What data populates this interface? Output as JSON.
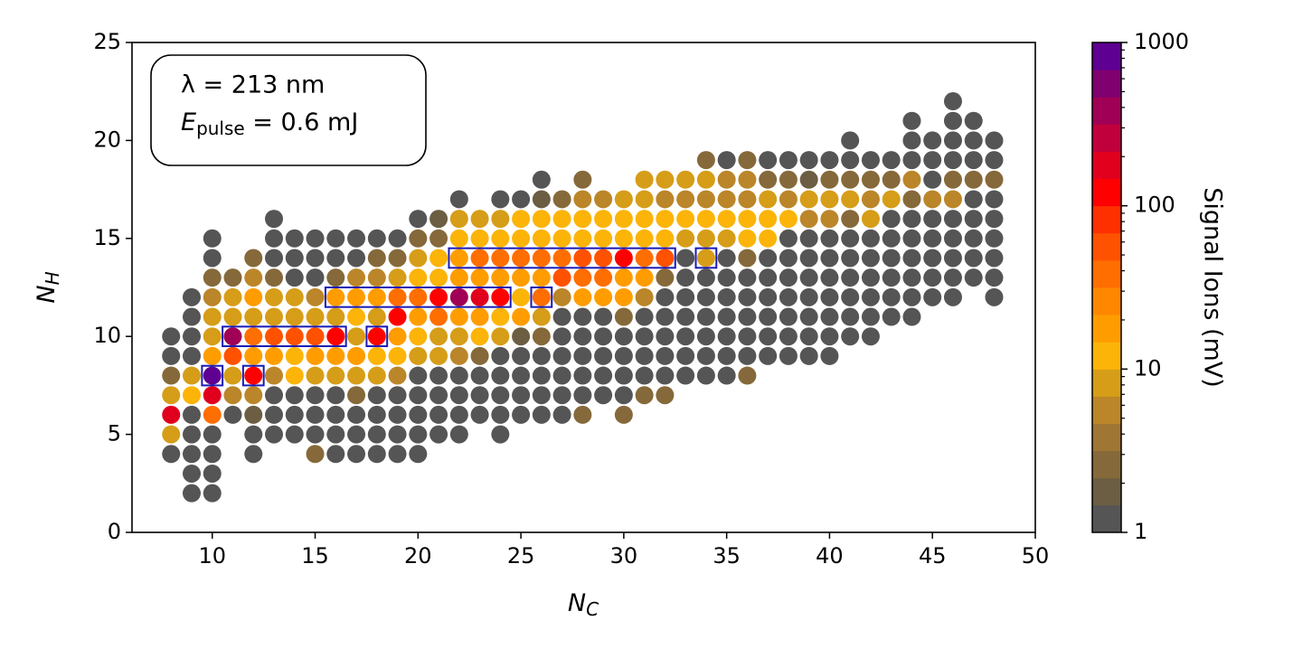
{
  "chart_data": {
    "type": "scatter",
    "xlabel": {
      "main": "N",
      "sub": "C"
    },
    "ylabel": {
      "main": "N",
      "sub": "H"
    },
    "annotation": {
      "line1": "λ = 213 nm",
      "line2": {
        "main": "E",
        "sub": "pulse",
        "rest": " = 0.6 mJ"
      }
    },
    "xlim": [
      6.1,
      50
    ],
    "xticks": [
      10,
      15,
      20,
      25,
      30,
      35,
      40,
      45,
      50
    ],
    "ylim": [
      0,
      25
    ],
    "yticks": [
      0,
      5,
      10,
      15,
      20,
      25
    ],
    "colorbar": {
      "label": "Signal Ions (mV)",
      "log": true,
      "clim": [
        1,
        1000
      ],
      "ticks": [
        1,
        10,
        100,
        1000
      ],
      "minor_ticks": [
        2,
        3,
        4,
        5,
        6,
        7,
        8,
        9,
        20,
        30,
        40,
        50,
        60,
        70,
        80,
        90,
        200,
        300,
        400,
        500,
        600,
        700,
        800,
        900
      ],
      "colors": [
        "#555555",
        "#6b5e42",
        "#86693a",
        "#a07634",
        "#bb8629",
        "#d69d18",
        "#fcb408",
        "#ff9d00",
        "#ff8700",
        "#ff6e00",
        "#ff5200",
        "#ff3000",
        "#ff0000",
        "#e0001e",
        "#c0003c",
        "#a00055",
        "#800070",
        "#5e0092"
      ]
    },
    "highlight_color": "#1a1ab4",
    "highlights": [
      {
        "x": [
          10,
          10
        ],
        "y": 8
      },
      {
        "x": [
          12,
          12
        ],
        "y": 8
      },
      {
        "x": [
          11,
          16
        ],
        "y": 10
      },
      {
        "x": [
          18,
          18
        ],
        "y": 10
      },
      {
        "x": [
          16,
          24
        ],
        "y": 12
      },
      {
        "x": [
          26,
          26
        ],
        "y": 12
      },
      {
        "x": [
          22,
          32
        ],
        "y": 14
      },
      {
        "x": [
          34,
          34
        ],
        "y": 14
      }
    ],
    "columns": [
      {
        "x": 8,
        "y": [
          4,
          5,
          6,
          7,
          8,
          9,
          10
        ],
        "values": [
          1.2,
          8,
          180,
          8,
          2.6,
          1.2,
          1.2
        ]
      },
      {
        "x": 9,
        "y": [
          2,
          3,
          4,
          5,
          6,
          7,
          8,
          9,
          10,
          11,
          12
        ],
        "values": [
          1.2,
          1.2,
          1.2,
          1.2,
          1.2,
          12,
          8,
          1.2,
          1.2,
          1.2,
          1.2
        ]
      },
      {
        "x": 10,
        "y": [
          2,
          3,
          4,
          5,
          6,
          7,
          8,
          9,
          10,
          11,
          12,
          13,
          14,
          15
        ],
        "values": [
          1.2,
          1.2,
          1.2,
          1.2,
          35,
          180,
          800,
          20,
          8,
          8,
          5,
          2.6,
          1.2,
          1.2
        ]
      },
      {
        "x": 11,
        "y": [
          6,
          7,
          8,
          9,
          10,
          11,
          12,
          13
        ],
        "values": [
          1.2,
          5,
          8,
          55,
          400,
          8,
          8,
          2.6
        ]
      },
      {
        "x": 12,
        "y": [
          4,
          5,
          6,
          7,
          8,
          9,
          10,
          11,
          12,
          13,
          14
        ],
        "values": [
          1.2,
          1.2,
          1.8,
          5,
          100,
          20,
          35,
          8,
          20,
          5,
          2.6
        ]
      },
      {
        "x": 13,
        "y": [
          5,
          6,
          7,
          8,
          9,
          10,
          11,
          12,
          13,
          14,
          15,
          16
        ],
        "values": [
          1.2,
          1.2,
          1.2,
          5,
          20,
          55,
          8,
          8,
          2.6,
          1.2,
          1.2,
          1.2
        ]
      },
      {
        "x": 14,
        "y": [
          5,
          6,
          7,
          8,
          9,
          10,
          11,
          12,
          13,
          14,
          15
        ],
        "values": [
          1.2,
          1.2,
          1.2,
          12,
          12,
          55,
          8,
          8,
          1.2,
          1.2,
          1.2
        ]
      },
      {
        "x": 15,
        "y": [
          4,
          5,
          6,
          7,
          8,
          9,
          10,
          11,
          12,
          13,
          14,
          15
        ],
        "values": [
          2.6,
          1.2,
          1.2,
          1.2,
          8,
          20,
          55,
          8,
          5,
          1.2,
          1.2,
          1.2
        ]
      },
      {
        "x": 16,
        "y": [
          4,
          5,
          6,
          7,
          8,
          9,
          10,
          11,
          12,
          13,
          14,
          15
        ],
        "values": [
          1.2,
          1.2,
          1.2,
          1.2,
          8,
          20,
          100,
          8,
          20,
          2.6,
          1.2,
          1.2
        ]
      },
      {
        "x": 17,
        "y": [
          4,
          5,
          6,
          7,
          8,
          9,
          10,
          11,
          12,
          13,
          14,
          15
        ],
        "values": [
          1.2,
          1.2,
          1.2,
          2.6,
          8,
          20,
          8,
          12,
          20,
          5,
          1.2,
          1.2
        ]
      },
      {
        "x": 18,
        "y": [
          4,
          5,
          6,
          7,
          8,
          9,
          10,
          11,
          12,
          13,
          14,
          15
        ],
        "values": [
          1.2,
          1.2,
          1.2,
          1.2,
          8,
          12,
          100,
          8,
          20,
          5,
          2.6,
          1.2
        ]
      },
      {
        "x": 19,
        "y": [
          4,
          5,
          6,
          7,
          8,
          9,
          10,
          11,
          12,
          13,
          14,
          15
        ],
        "values": [
          1.2,
          1.2,
          1.2,
          1.2,
          5,
          12,
          20,
          100,
          35,
          8,
          2.6,
          1.2
        ]
      },
      {
        "x": 20,
        "y": [
          4,
          5,
          6,
          7,
          8,
          9,
          10,
          11,
          12,
          13,
          14,
          15,
          16
        ],
        "values": [
          1.2,
          1.2,
          1.2,
          1.2,
          1.2,
          8,
          12,
          20,
          35,
          12,
          8,
          2.6,
          1.2
        ]
      },
      {
        "x": 21,
        "y": [
          5,
          6,
          7,
          8,
          9,
          10,
          11,
          12,
          13,
          14,
          15,
          16
        ],
        "values": [
          1.2,
          1.2,
          1.2,
          1.2,
          8,
          8,
          35,
          100,
          12,
          12,
          2.6,
          1.8
        ]
      },
      {
        "x": 22,
        "y": [
          5,
          6,
          7,
          8,
          9,
          10,
          11,
          12,
          13,
          14,
          15,
          16,
          17
        ],
        "values": [
          1.2,
          1.2,
          1.2,
          1.2,
          5,
          8,
          20,
          400,
          20,
          20,
          12,
          8,
          1.2
        ]
      },
      {
        "x": 23,
        "y": [
          6,
          7,
          8,
          9,
          10,
          11,
          12,
          13,
          14,
          15,
          16
        ],
        "values": [
          1.2,
          1.2,
          1.2,
          2.6,
          12,
          20,
          180,
          20,
          35,
          12,
          8
        ]
      },
      {
        "x": 24,
        "y": [
          5,
          6,
          7,
          8,
          9,
          10,
          11,
          12,
          13,
          14,
          15,
          16,
          17
        ],
        "values": [
          1.2,
          1.2,
          1.2,
          1.2,
          1.2,
          8,
          12,
          100,
          20,
          35,
          12,
          8,
          1.2
        ]
      },
      {
        "x": 25,
        "y": [
          6,
          7,
          8,
          9,
          10,
          11,
          12,
          13,
          14,
          15,
          16,
          17
        ],
        "values": [
          1.2,
          1.2,
          1.2,
          1.2,
          1.8,
          20,
          12,
          20,
          35,
          12,
          12,
          1.2
        ]
      },
      {
        "x": 26,
        "y": [
          6,
          7,
          8,
          9,
          10,
          11,
          12,
          13,
          14,
          15,
          16,
          17,
          18
        ],
        "values": [
          1.2,
          1.2,
          1.2,
          1.2,
          2.6,
          8,
          35,
          20,
          35,
          12,
          12,
          1.8,
          1.2
        ]
      },
      {
        "x": 27,
        "y": [
          6,
          7,
          8,
          9,
          10,
          11,
          12,
          13,
          14,
          15,
          16,
          17
        ],
        "values": [
          1.2,
          1.2,
          1.2,
          1.2,
          1.2,
          1.2,
          5,
          55,
          35,
          12,
          12,
          2.6
        ]
      },
      {
        "x": 28,
        "y": [
          6,
          7,
          8,
          9,
          10,
          11,
          12,
          13,
          14,
          15,
          16,
          17,
          18
        ],
        "values": [
          2.6,
          1.2,
          1.2,
          1.2,
          1.2,
          1.2,
          20,
          35,
          55,
          12,
          12,
          5,
          2.6
        ]
      },
      {
        "x": 29,
        "y": [
          7,
          8,
          9,
          10,
          11,
          12,
          13,
          14,
          15,
          16,
          17
        ],
        "values": [
          1.2,
          1.2,
          1.2,
          1.2,
          1.2,
          20,
          35,
          55,
          12,
          12,
          5
        ]
      },
      {
        "x": 30,
        "y": [
          6,
          7,
          8,
          9,
          10,
          11,
          12,
          13,
          14,
          15,
          16,
          17
        ],
        "values": [
          2.6,
          1.2,
          1.2,
          1.2,
          1.2,
          2.6,
          20,
          20,
          100,
          12,
          12,
          8
        ]
      },
      {
        "x": 31,
        "y": [
          7,
          8,
          9,
          10,
          11,
          12,
          13,
          14,
          15,
          16,
          17,
          18
        ],
        "values": [
          2.6,
          1.2,
          1.2,
          1.2,
          1.2,
          5,
          20,
          35,
          12,
          12,
          8,
          8
        ]
      },
      {
        "x": 32,
        "y": [
          7,
          8,
          9,
          10,
          11,
          12,
          13,
          14,
          15,
          16,
          17,
          18
        ],
        "values": [
          2.6,
          1.2,
          1.2,
          1.2,
          1.2,
          1.2,
          2.6,
          55,
          12,
          12,
          5,
          8
        ]
      },
      {
        "x": 33,
        "y": [
          8,
          9,
          10,
          11,
          12,
          13,
          14,
          15,
          16,
          17,
          18
        ],
        "values": [
          1.2,
          1.2,
          1.2,
          1.2,
          1.2,
          1.2,
          1.2,
          8,
          12,
          5,
          8
        ]
      },
      {
        "x": 34,
        "y": [
          8,
          9,
          10,
          11,
          12,
          13,
          14,
          15,
          16,
          17,
          18,
          19
        ],
        "values": [
          1.2,
          1.2,
          1.2,
          1.2,
          1.2,
          1.2,
          8,
          8,
          12,
          5,
          8,
          2.6
        ]
      },
      {
        "x": 35,
        "y": [
          8,
          9,
          10,
          11,
          12,
          13,
          14,
          15,
          16,
          17,
          18,
          19
        ],
        "values": [
          1.2,
          1.2,
          1.2,
          1.2,
          1.2,
          1.2,
          1.2,
          8,
          12,
          5,
          5,
          1.2
        ]
      },
      {
        "x": 36,
        "y": [
          8,
          9,
          10,
          11,
          12,
          13,
          14,
          15,
          16,
          17,
          18,
          19
        ],
        "values": [
          2.6,
          1.2,
          1.2,
          1.2,
          1.2,
          1.2,
          2.6,
          12,
          12,
          5,
          5,
          2.6
        ]
      },
      {
        "x": 37,
        "y": [
          9,
          10,
          11,
          12,
          13,
          14,
          15,
          16,
          17,
          18,
          19
        ],
        "values": [
          1.2,
          1.2,
          1.2,
          1.2,
          1.2,
          1.2,
          12,
          12,
          8,
          2.6,
          1.2
        ]
      },
      {
        "x": 38,
        "y": [
          9,
          10,
          11,
          12,
          13,
          14,
          15,
          16,
          17,
          18,
          19
        ],
        "values": [
          1.2,
          1.2,
          1.2,
          1.2,
          1.2,
          1.2,
          1.2,
          12,
          5,
          2.6,
          1.2
        ]
      },
      {
        "x": 39,
        "y": [
          9,
          10,
          11,
          12,
          13,
          14,
          15,
          16,
          17,
          18,
          19
        ],
        "values": [
          1.2,
          1.2,
          1.2,
          1.2,
          1.2,
          1.2,
          1.2,
          5,
          8,
          1.8,
          1.2
        ]
      },
      {
        "x": 40,
        "y": [
          9,
          10,
          11,
          12,
          13,
          14,
          15,
          16,
          17,
          18,
          19
        ],
        "values": [
          1.2,
          1.2,
          1.2,
          1.2,
          1.2,
          1.2,
          1.2,
          5,
          8,
          2.6,
          1.2
        ]
      },
      {
        "x": 41,
        "y": [
          10,
          11,
          12,
          13,
          14,
          15,
          16,
          17,
          18,
          19,
          20
        ],
        "values": [
          1.2,
          1.2,
          1.2,
          1.2,
          1.2,
          1.2,
          2.6,
          8,
          2.6,
          1.2,
          1.2
        ]
      },
      {
        "x": 42,
        "y": [
          10,
          11,
          12,
          13,
          14,
          15,
          16,
          17,
          18,
          19
        ],
        "values": [
          1.2,
          1.2,
          1.2,
          1.2,
          1.2,
          1.2,
          8,
          5,
          2.6,
          1.2
        ]
      },
      {
        "x": 43,
        "y": [
          11,
          12,
          13,
          14,
          15,
          16,
          17,
          18,
          19
        ],
        "values": [
          1.2,
          1.2,
          1.2,
          1.2,
          1.2,
          1.2,
          8,
          2.6,
          1.2
        ]
      },
      {
        "x": 44,
        "y": [
          11,
          12,
          13,
          14,
          15,
          16,
          17,
          18,
          19,
          20,
          21
        ],
        "values": [
          1.2,
          1.2,
          1.2,
          1.2,
          1.2,
          1.2,
          2.6,
          5,
          1.2,
          1.2,
          1.2
        ]
      },
      {
        "x": 45,
        "y": [
          12,
          13,
          14,
          15,
          16,
          17,
          18,
          19,
          20
        ],
        "values": [
          1.2,
          1.2,
          1.2,
          1.2,
          1.2,
          5,
          1.2,
          1.2,
          1.2
        ]
      },
      {
        "x": 46,
        "y": [
          12,
          13,
          14,
          15,
          16,
          17,
          18,
          19,
          20,
          21,
          22
        ],
        "values": [
          1.2,
          1.2,
          1.2,
          1.2,
          1.2,
          5,
          2.6,
          1.2,
          1.2,
          1.2,
          1.2
        ]
      },
      {
        "x": 47,
        "y": [
          13,
          14,
          15,
          16,
          17,
          18,
          19,
          20,
          21
        ],
        "values": [
          1.2,
          1.2,
          1.2,
          1.2,
          1.2,
          2.6,
          1.2,
          1.2,
          1.2
        ]
      },
      {
        "x": 48,
        "y": [
          12,
          13,
          14,
          15,
          16,
          17,
          18,
          19,
          20
        ],
        "values": [
          1.2,
          1.2,
          1.2,
          1.2,
          1.2,
          1.2,
          2.6,
          1.2,
          1.2
        ]
      }
    ]
  }
}
